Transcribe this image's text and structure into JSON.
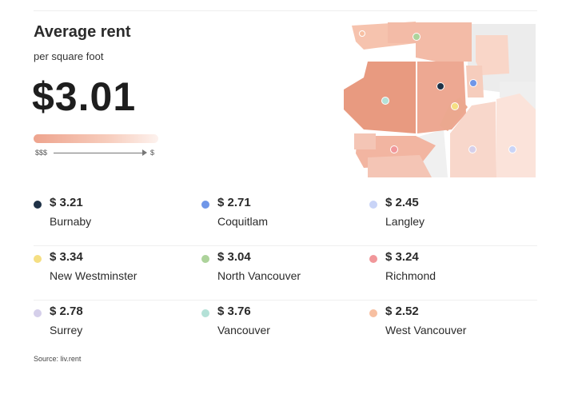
{
  "header": {
    "title": "Average rent",
    "subtitle": "per square foot",
    "big_value": "$3.01"
  },
  "scale": {
    "left_label": "$$$",
    "right_label": "$",
    "gradient_colors": [
      "#eea48e",
      "#f7cdbd",
      "#fdf2ee"
    ]
  },
  "cities": [
    {
      "price": "$ 3.21",
      "name": "Burnaby",
      "color": "#1f3247"
    },
    {
      "price": "$ 2.71",
      "name": "Coquitlam",
      "color": "#6f96e8"
    },
    {
      "price": "$ 2.45",
      "name": "Langley",
      "color": "#c9d4f7"
    },
    {
      "price": "$ 3.34",
      "name": "New Westminster",
      "color": "#f5df83"
    },
    {
      "price": "$ 3.04",
      "name": "North Vancouver",
      "color": "#add39b"
    },
    {
      "price": "$ 3.24",
      "name": "Richmond",
      "color": "#f1979a"
    },
    {
      "price": "$ 2.78",
      "name": "Surrey",
      "color": "#d5cfea"
    },
    {
      "price": "$ 3.76",
      "name": "Vancouver",
      "color": "#b4e1d7"
    },
    {
      "price": "$ 2.52",
      "name": "West Vancouver",
      "color": "#f7bfa1"
    }
  ],
  "map": {
    "region_colors": {
      "darkest": "#e89a80",
      "dark": "#eeae98",
      "mid": "#f4c8b8",
      "light": "#f8dbd0",
      "lighter": "#fbe8e1",
      "neutral": "#ececec"
    }
  },
  "footer": {
    "source": "Source: liv.rent"
  }
}
